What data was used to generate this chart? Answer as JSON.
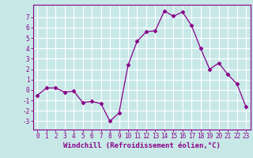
{
  "x": [
    0,
    1,
    2,
    3,
    4,
    5,
    6,
    7,
    8,
    9,
    10,
    11,
    12,
    13,
    14,
    15,
    16,
    17,
    18,
    19,
    20,
    21,
    22,
    23
  ],
  "y": [
    -0.5,
    0.2,
    0.2,
    -0.2,
    -0.1,
    -1.2,
    -1.1,
    -1.3,
    -3.0,
    -2.2,
    2.4,
    4.7,
    5.6,
    5.7,
    7.6,
    7.1,
    7.5,
    6.2,
    4.0,
    2.0,
    2.6,
    1.5,
    0.6,
    -1.6
  ],
  "xlim": [
    -0.5,
    23.5
  ],
  "ylim": [
    -3.8,
    8.2
  ],
  "yticks": [
    -3,
    -2,
    -1,
    0,
    1,
    2,
    3,
    4,
    5,
    6,
    7
  ],
  "xticks": [
    0,
    1,
    2,
    3,
    4,
    5,
    6,
    7,
    8,
    9,
    10,
    11,
    12,
    13,
    14,
    15,
    16,
    17,
    18,
    19,
    20,
    21,
    22,
    23
  ],
  "xlabel": "Windchill (Refroidissement éolien,°C)",
  "line_color": "#880088",
  "marker": "D",
  "marker_size": 2.5,
  "bg_color": "#c8e8e8",
  "grid_color": "#ffffff",
  "tick_color": "#880088",
  "label_color": "#880088",
  "tick_fontsize": 5.5,
  "xlabel_fontsize": 6.5,
  "spine_color": "#880088"
}
